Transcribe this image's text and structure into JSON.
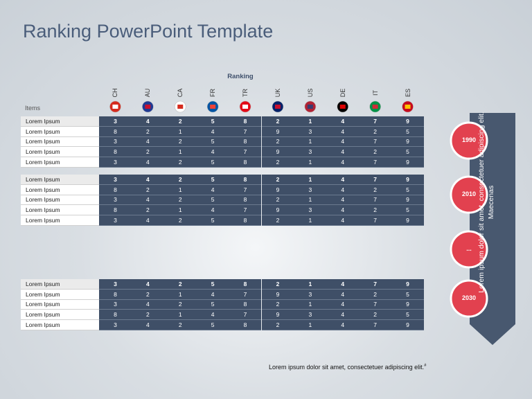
{
  "header": {
    "title": "Ranking PowerPoint Template"
  },
  "ranking_label": "Ranking",
  "items_label": "Items",
  "countries": [
    "CH",
    "AU",
    "CA",
    "FR",
    "TR",
    "UK",
    "US",
    "DE",
    "IT",
    "ES"
  ],
  "tables": [
    {
      "rows": [
        {
          "label": "Lorem Ipsum",
          "values": [
            3,
            4,
            2,
            5,
            8,
            2,
            1,
            4,
            7,
            9
          ]
        },
        {
          "label": "Lorem Ipsum",
          "values": [
            8,
            2,
            1,
            4,
            7,
            9,
            3,
            4,
            2,
            5
          ]
        },
        {
          "label": "Lorem Ipsum",
          "values": [
            3,
            4,
            2,
            5,
            8,
            2,
            1,
            4,
            7,
            9
          ]
        },
        {
          "label": "Lorem Ipsum",
          "values": [
            8,
            2,
            1,
            4,
            7,
            9,
            3,
            4,
            2,
            5
          ]
        },
        {
          "label": "Lorem Ipsum",
          "values": [
            3,
            4,
            2,
            5,
            8,
            2,
            1,
            4,
            7,
            9
          ]
        }
      ]
    },
    {
      "rows": [
        {
          "label": "Lorem Ipsum",
          "values": [
            3,
            4,
            2,
            5,
            8,
            2,
            1,
            4,
            7,
            9
          ]
        },
        {
          "label": "Lorem Ipsum",
          "values": [
            8,
            2,
            1,
            4,
            7,
            9,
            3,
            4,
            2,
            5
          ]
        },
        {
          "label": "Lorem Ipsum",
          "values": [
            3,
            4,
            2,
            5,
            8,
            2,
            1,
            4,
            7,
            9
          ]
        },
        {
          "label": "Lorem Ipsum",
          "values": [
            8,
            2,
            1,
            4,
            7,
            9,
            3,
            4,
            2,
            5
          ]
        },
        {
          "label": "Lorem Ipsum",
          "values": [
            3,
            4,
            2,
            5,
            8,
            2,
            1,
            4,
            7,
            9
          ]
        }
      ]
    },
    {
      "rows": [
        {
          "label": "Lorem Ipsum",
          "values": [
            3,
            4,
            2,
            5,
            8,
            2,
            1,
            4,
            7,
            9
          ]
        },
        {
          "label": "Lorem Ipsum",
          "values": [
            8,
            2,
            1,
            4,
            7,
            9,
            3,
            4,
            2,
            5
          ]
        },
        {
          "label": "Lorem Ipsum",
          "values": [
            3,
            4,
            2,
            5,
            8,
            2,
            1,
            4,
            7,
            9
          ]
        },
        {
          "label": "Lorem Ipsum",
          "values": [
            8,
            2,
            1,
            4,
            7,
            9,
            3,
            4,
            2,
            5
          ]
        },
        {
          "label": "Lorem Ipsum",
          "values": [
            3,
            4,
            2,
            5,
            8,
            2,
            1,
            4,
            7,
            9
          ]
        }
      ]
    }
  ],
  "timeline": {
    "text": "Lorem ipsum dolor sit amet, consectetuer adipiscing elit. Maecenas",
    "milestones": [
      "1990",
      "2010",
      "...",
      "2030"
    ]
  },
  "footer": {
    "text": "Lorem ipsum dolor sit amet, consectetuer adipiscing elit.",
    "mark": "#"
  }
}
